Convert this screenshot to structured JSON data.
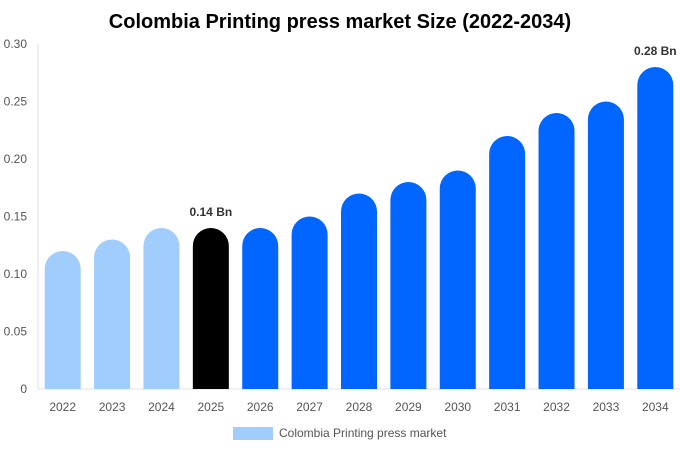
{
  "chart_data": {
    "type": "bar",
    "title": "Colombia Printing press market Size (2022-2034)",
    "xlabel": "",
    "ylabel": "",
    "ylim": [
      0,
      0.3
    ],
    "yticks": [
      "0",
      "0.05",
      "0.10",
      "0.15",
      "0.20",
      "0.25",
      "0.30"
    ],
    "categories": [
      "2022",
      "2023",
      "2024",
      "2025",
      "2026",
      "2027",
      "2028",
      "2029",
      "2030",
      "2031",
      "2032",
      "2033",
      "2034"
    ],
    "series": [
      {
        "name": "Colombia Printing press market",
        "values": [
          0.12,
          0.13,
          0.14,
          0.14,
          0.14,
          0.15,
          0.17,
          0.18,
          0.19,
          0.22,
          0.24,
          0.25,
          0.28
        ]
      }
    ],
    "bar_colors": [
      "#a1cdfd",
      "#a1cdfd",
      "#a1cdfd",
      "#000000",
      "#0066ff",
      "#0066ff",
      "#0066ff",
      "#0066ff",
      "#0066ff",
      "#0066ff",
      "#0066ff",
      "#0066ff",
      "#0066ff"
    ],
    "data_labels": [
      {
        "index": 3,
        "text": "0.14 Bn"
      },
      {
        "index": 12,
        "text": "0.28 Bn"
      }
    ],
    "legend": {
      "position": "bottom",
      "label": "Colombia Printing press market",
      "color": "#a1cdfd"
    },
    "grid": false
  }
}
